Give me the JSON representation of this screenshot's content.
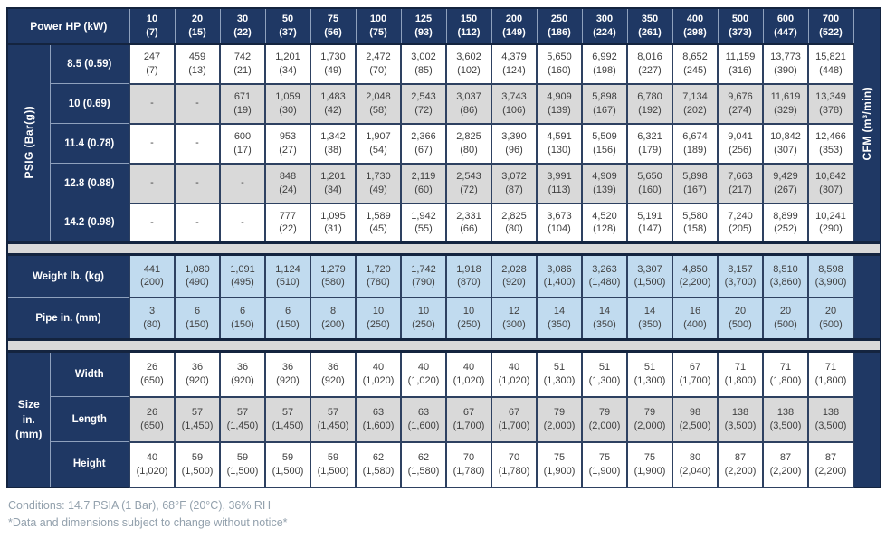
{
  "table": {
    "power_header": "Power HP (kW)",
    "power_columns": [
      "10\n(7)",
      "20\n(15)",
      "30\n(22)",
      "50\n(37)",
      "75\n(56)",
      "100\n(75)",
      "125\n(93)",
      "150\n(112)",
      "200\n(149)",
      "250\n(186)",
      "300\n(224)",
      "350\n(261)",
      "400\n(298)",
      "500\n(373)",
      "600\n(447)",
      "700\n(522)"
    ],
    "psig_axis_label": "PSIG (Bar(g))",
    "cfm_axis_label": "CFM (m³/min)",
    "psig_rows": [
      {
        "pressure": "8.5 (0.59)",
        "shade": "white",
        "cells": [
          "247\n(7)",
          "459\n(13)",
          "742\n(21)",
          "1,201\n(34)",
          "1,730\n(49)",
          "2,472\n(70)",
          "3,002\n(85)",
          "3,602\n(102)",
          "4,379\n(124)",
          "5,650\n(160)",
          "6,992\n(198)",
          "8,016\n(227)",
          "8,652\n(245)",
          "11,159\n(316)",
          "13,773\n(390)",
          "15,821\n(448)"
        ]
      },
      {
        "pressure": "10 (0.69)",
        "shade": "grey",
        "cells": [
          "-",
          "-",
          "671\n(19)",
          "1,059\n(30)",
          "1,483\n(42)",
          "2,048\n(58)",
          "2,543\n(72)",
          "3,037\n(86)",
          "3,743\n(106)",
          "4,909\n(139)",
          "5,898\n(167)",
          "6,780\n(192)",
          "7,134\n(202)",
          "9,676\n(274)",
          "11,619\n(329)",
          "13,349\n(378)"
        ]
      },
      {
        "pressure": "11.4 (0.78)",
        "shade": "white",
        "cells": [
          "-",
          "-",
          "600\n(17)",
          "953\n(27)",
          "1,342\n(38)",
          "1,907\n(54)",
          "2,366\n(67)",
          "2,825\n(80)",
          "3,390\n(96)",
          "4,591\n(130)",
          "5,509\n(156)",
          "6,321\n(179)",
          "6,674\n(189)",
          "9,041\n(256)",
          "10,842\n(307)",
          "12,466\n(353)"
        ]
      },
      {
        "pressure": "12.8 (0.88)",
        "shade": "grey",
        "cells": [
          "-",
          "-",
          "-",
          "848\n(24)",
          "1,201\n(34)",
          "1,730\n(49)",
          "2,119\n(60)",
          "2,543\n(72)",
          "3,072\n(87)",
          "3,991\n(113)",
          "4,909\n(139)",
          "5,650\n(160)",
          "5,898\n(167)",
          "7,663\n(217)",
          "9,429\n(267)",
          "10,842\n(307)"
        ]
      },
      {
        "pressure": "14.2 (0.98)",
        "shade": "white",
        "cells": [
          "-",
          "-",
          "-",
          "777\n(22)",
          "1,095\n(31)",
          "1,589\n(45)",
          "1,942\n(55)",
          "2,331\n(66)",
          "2,825\n(80)",
          "3,673\n(104)",
          "4,520\n(128)",
          "5,191\n(147)",
          "5,580\n(158)",
          "7,240\n(205)",
          "8,899\n(252)",
          "10,241\n(290)"
        ]
      }
    ],
    "weight_row": {
      "label": "Weight lb. (kg)",
      "cells": [
        "441\n(200)",
        "1,080\n(490)",
        "1,091\n(495)",
        "1,124\n(510)",
        "1,279\n(580)",
        "1,720\n(780)",
        "1,742\n(790)",
        "1,918\n(870)",
        "2,028\n(920)",
        "3,086\n(1,400)",
        "3,263\n(1,480)",
        "3,307\n(1,500)",
        "4,850\n(2,200)",
        "8,157\n(3,700)",
        "8,510\n(3,860)",
        "8,598\n(3,900)"
      ]
    },
    "pipe_row": {
      "label": "Pipe in. (mm)",
      "cells": [
        "3\n(80)",
        "6\n(150)",
        "6\n(150)",
        "6\n(150)",
        "8\n(200)",
        "10\n(250)",
        "10\n(250)",
        "10\n(250)",
        "12\n(300)",
        "14\n(350)",
        "14\n(350)",
        "14\n(350)",
        "16\n(400)",
        "20\n(500)",
        "20\n(500)",
        "20\n(500)"
      ]
    },
    "size_section": {
      "label": "Size\nin.\n(mm)",
      "rows": [
        {
          "label": "Width",
          "shade": "white",
          "cells": [
            "26\n(650)",
            "36\n(920)",
            "36\n(920)",
            "36\n(920)",
            "36\n(920)",
            "40\n(1,020)",
            "40\n(1,020)",
            "40\n(1,020)",
            "40\n(1,020)",
            "51\n(1,300)",
            "51\n(1,300)",
            "51\n(1,300)",
            "67\n(1,700)",
            "71\n(1,800)",
            "71\n(1,800)",
            "71\n(1,800)"
          ]
        },
        {
          "label": "Length",
          "shade": "grey",
          "cells": [
            "26\n(650)",
            "57\n(1,450)",
            "57\n(1,450)",
            "57\n(1,450)",
            "57\n(1,450)",
            "63\n(1,600)",
            "63\n(1,600)",
            "67\n(1,700)",
            "67\n(1,700)",
            "79\n(2,000)",
            "79\n(2,000)",
            "79\n(2,000)",
            "98\n(2,500)",
            "138\n(3,500)",
            "138\n(3,500)",
            "138\n(3,500)"
          ]
        },
        {
          "label": "Height",
          "shade": "white",
          "cells": [
            "40\n(1,020)",
            "59\n(1,500)",
            "59\n(1,500)",
            "59\n(1,500)",
            "59\n(1,500)",
            "62\n(1,580)",
            "62\n(1,580)",
            "70\n(1,780)",
            "70\n(1,780)",
            "75\n(1,900)",
            "75\n(1,900)",
            "75\n(1,900)",
            "80\n(2,040)",
            "87\n(2,200)",
            "87\n(2,200)",
            "87\n(2,200)"
          ]
        }
      ]
    }
  },
  "footer": {
    "line1": "Conditions: 14.7 PSIA (1 Bar), 68°F (20°C), 36% RH",
    "line2": "*Data and dimensions subject to change without notice*"
  },
  "colors": {
    "navy": "#1f3864",
    "light_blue": "#c1dbef",
    "stripe_grey": "#d9d9d9",
    "border_dark": "#14243f",
    "cell_text": "#3f3f3f",
    "footer_text": "#93a1ad"
  }
}
